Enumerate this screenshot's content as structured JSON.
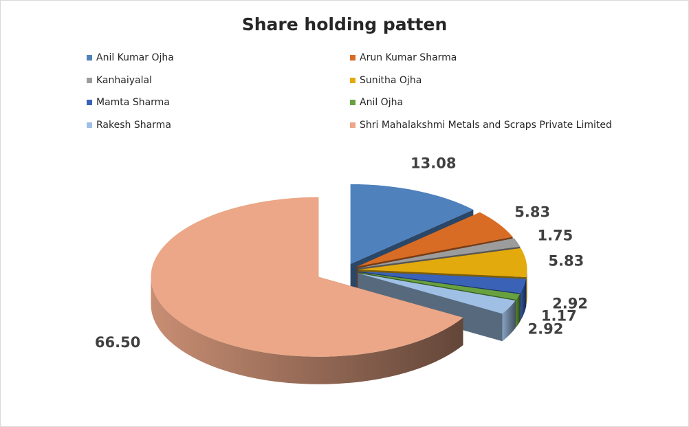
{
  "chart_data": {
    "type": "pie",
    "title": "Share holding patten",
    "legend_position": "top",
    "style": "3d-exploded",
    "slices": [
      {
        "label": "Anil Kumar Ojha",
        "value": 13.08,
        "value_label": "13.08",
        "color": "#4f81bd"
      },
      {
        "label": "Arun Kumar Sharma",
        "value": 5.83,
        "value_label": "5.83",
        "color": "#d86c24"
      },
      {
        "label": "Kanhaiyalal",
        "value": 1.75,
        "value_label": "1.75",
        "color": "#9c9c9c"
      },
      {
        "label": "Sunitha Ojha",
        "value": 5.83,
        "value_label": "5.83",
        "color": "#e3aa0e"
      },
      {
        "label": "Mamta Sharma",
        "value": 2.92,
        "value_label": "2.92",
        "color": "#3a63b8"
      },
      {
        "label": "Anil Ojha",
        "value": 1.17,
        "value_label": "1.17",
        "color": "#67a140"
      },
      {
        "label": "Rakesh Sharma",
        "value": 2.92,
        "value_label": "2.92",
        "color": "#9fc0e4"
      },
      {
        "label": "Shri Mahalakshmi Metals and Scraps Private Limited",
        "value": 66.5,
        "value_label": "66.50",
        "color": "#eba787"
      }
    ]
  }
}
